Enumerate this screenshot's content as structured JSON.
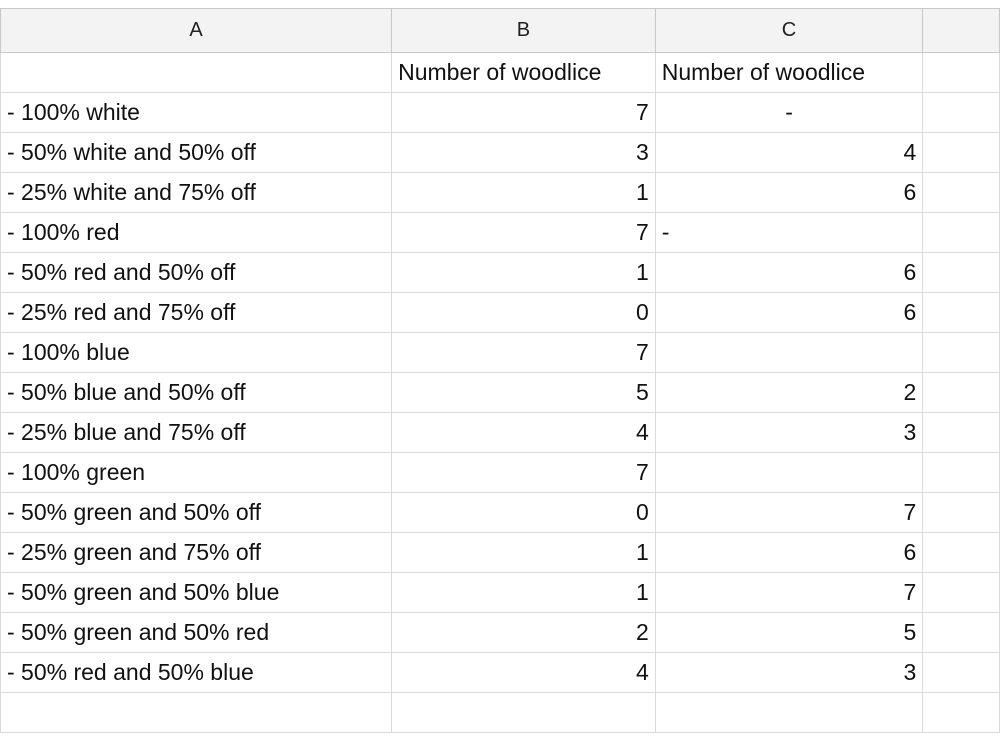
{
  "columns": [
    "A",
    "B",
    "C"
  ],
  "header_row": {
    "a": "",
    "b": "Number of woodlice",
    "c": "Number of woodlice"
  },
  "rows": [
    {
      "label": "- 100% white",
      "b": "7",
      "c": "-"
    },
    {
      "label": "- 50% white and 50% off",
      "b": "3",
      "c": "4"
    },
    {
      "label": "- 25% white and 75% off",
      "b": "1",
      "c": "6"
    },
    {
      "label": "- 100% red",
      "b": "7",
      "c": "-"
    },
    {
      "label": "- 50% red and 50% off",
      "b": "1",
      "c": "6"
    },
    {
      "label": "- 25% red and 75% off",
      "b": "0",
      "c": "6"
    },
    {
      "label": "- 100% blue",
      "b": "7",
      "c": ""
    },
    {
      "label": "- 50% blue and 50% off",
      "b": "5",
      "c": "2"
    },
    {
      "label": "- 25% blue and 75% off",
      "b": "4",
      "c": "3"
    },
    {
      "label": "- 100% green",
      "b": "7",
      "c": ""
    },
    {
      "label": "- 50% green and 50% off",
      "b": "0",
      "c": "7"
    },
    {
      "label": "- 25% green and 75% off",
      "b": "1",
      "c": "6"
    },
    {
      "label": "- 50% green and 50% blue",
      "b": "1",
      "c": "7"
    },
    {
      "label": "- 50% green and 50% red",
      "b": "2",
      "c": "5"
    },
    {
      "label": "- 50% red and 50% blue",
      "b": "4",
      "c": "3"
    },
    {
      "label": "",
      "b": "",
      "c": ""
    }
  ]
}
